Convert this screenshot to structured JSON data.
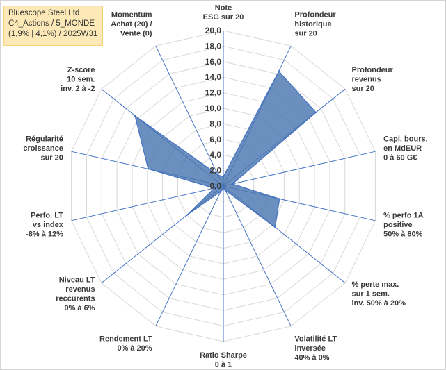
{
  "info": {
    "line1": "Bluescope Steel Ltd",
    "line2": "C4_Actions / 5_MONDE",
    "line3": "(1,9% | 4,1%) / 2025W31"
  },
  "colors": {
    "fill": "#4a76b0",
    "stroke": "#4472c4",
    "grid": "#d9d9d9",
    "spoke": "#4472c4",
    "text": "#3a3a3a"
  },
  "chart_data": {
    "type": "radar",
    "title": "",
    "rlim": [
      0,
      20
    ],
    "ticks": [
      "0,0",
      "2,0",
      "4,0",
      "6,0",
      "8,0",
      "10,0",
      "12,0",
      "14,0",
      "16,0",
      "18,0",
      "20,0"
    ],
    "grid": true,
    "axes": [
      {
        "lines": [
          "Note",
          "ESG sur 20"
        ]
      },
      {
        "lines": [
          "Profondeur",
          "historique",
          "sur 20"
        ]
      },
      {
        "lines": [
          "Profondeur",
          "revenus",
          "sur 20"
        ]
      },
      {
        "lines": [
          "Capi. bours.",
          "en MdEUR",
          "0 à 60 G€"
        ]
      },
      {
        "lines": [
          "% perfo 1A",
          "positive",
          "50% à 80%"
        ]
      },
      {
        "lines": [
          "% perte max.",
          "sur 1 sem.",
          "inv. 50% à 20%"
        ]
      },
      {
        "lines": [
          "Volatilité LT",
          "inversée",
          "40% à 0%"
        ]
      },
      {
        "lines": [
          "Ratio Sharpe",
          "0 à 1"
        ]
      },
      {
        "lines": [
          "Rendement LT",
          "0% à 20%"
        ]
      },
      {
        "lines": [
          "Niveau LT",
          "revenus",
          "reccurents",
          "0% à 6%"
        ]
      },
      {
        "lines": [
          "Perfo. LT",
          "vs index",
          "-8% à 12%"
        ]
      },
      {
        "lines": [
          "Régularité",
          "croissance",
          "sur 20"
        ]
      },
      {
        "lines": [
          "Z-score",
          "10 sem.",
          "inv. 2 à -2"
        ]
      },
      {
        "lines": [
          "Momentum",
          "Achat (20) /",
          "Vente (0)"
        ]
      }
    ],
    "series": [
      {
        "values": [
          1.2,
          16.4,
          15.2,
          1.2,
          7.4,
          8.5,
          0.6,
          0.3,
          0.8,
          6.0,
          1.2,
          9.9,
          14.5,
          1.6
        ]
      }
    ]
  }
}
